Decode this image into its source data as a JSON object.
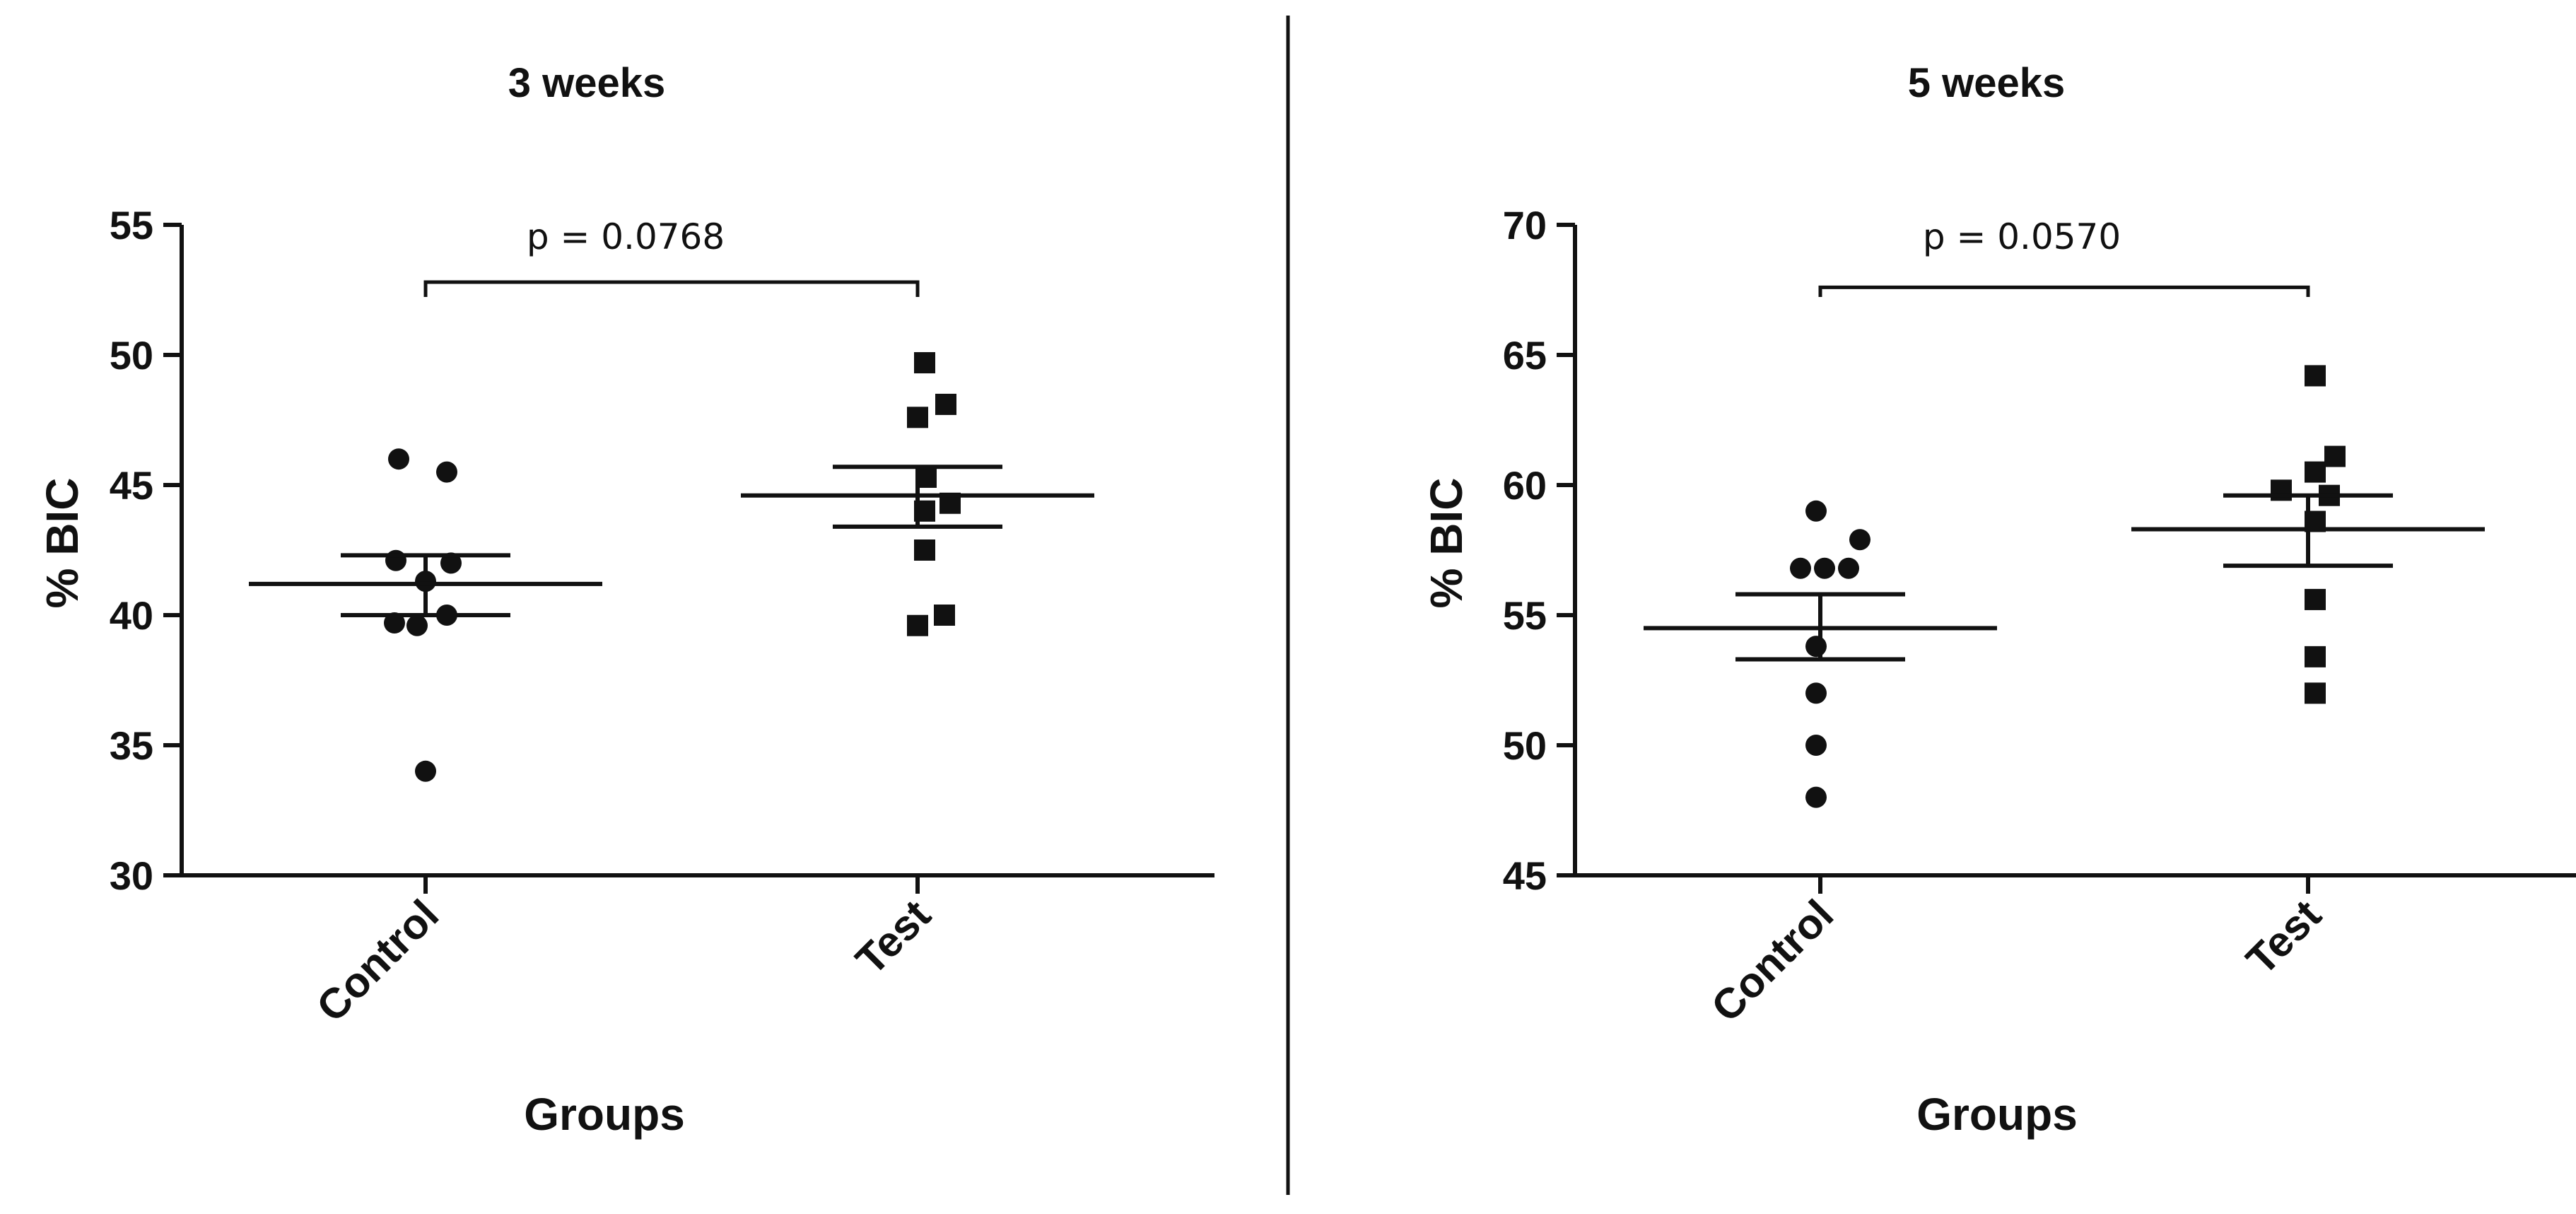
{
  "chart_data": [
    {
      "type": "scatter",
      "title": "3 weeks",
      "xlabel": "Groups",
      "ylabel": "% BIC",
      "ylim": [
        30,
        55
      ],
      "yticks": [
        30,
        35,
        40,
        45,
        50,
        55
      ],
      "categories": [
        "Control",
        "Test"
      ],
      "series": [
        {
          "category": "Control",
          "marker": "circle",
          "values": [
            46.0,
            45.5,
            42.1,
            42.0,
            41.3,
            40.0,
            39.7,
            39.6,
            34.0
          ],
          "mean": 41.2,
          "sem_upper": 42.3,
          "sem_lower": 40.0
        },
        {
          "category": "Test",
          "marker": "square",
          "values": [
            49.7,
            48.1,
            47.6,
            45.3,
            44.3,
            44.0,
            42.5,
            40.0,
            39.6
          ],
          "mean": 44.6,
          "sem_upper": 45.7,
          "sem_lower": 43.4
        }
      ],
      "annotation": {
        "text": "p = 0.0768",
        "bracket_y": 52.8
      }
    },
    {
      "type": "scatter",
      "title": "5 weeks",
      "xlabel": "Groups",
      "ylabel": "% BIC",
      "ylim": [
        45,
        70
      ],
      "yticks": [
        45,
        50,
        55,
        60,
        65,
        70
      ],
      "categories": [
        "Control",
        "Test"
      ],
      "series": [
        {
          "category": "Control",
          "marker": "circle",
          "values": [
            59.0,
            57.9,
            56.8,
            56.8,
            56.8,
            53.8,
            52.0,
            50.0,
            48.0
          ],
          "mean": 54.5,
          "sem_upper": 55.8,
          "sem_lower": 53.3
        },
        {
          "category": "Test",
          "marker": "square",
          "values": [
            64.2,
            61.1,
            60.5,
            59.8,
            59.6,
            58.6,
            55.6,
            53.4,
            52.0
          ],
          "mean": 58.3,
          "sem_upper": 59.6,
          "sem_lower": 56.9
        }
      ],
      "annotation": {
        "text": "p = 0.0570",
        "bracket_y": 67.6
      }
    }
  ]
}
